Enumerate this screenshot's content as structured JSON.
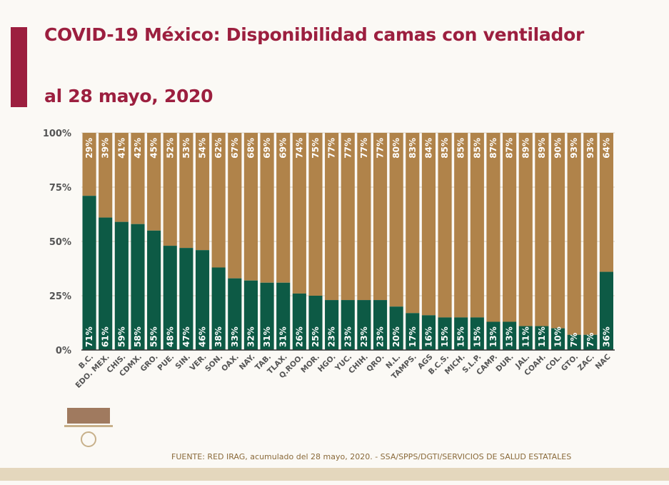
{
  "title_line1": "COVID-19 México: Disponibilidad camas con ventilador",
  "title_line2": "al 28 mayo, 2020",
  "footer": "FUENTE: RED IRAG, acumulado del 28 mayo, 2020. -  SSA/SPPS/DGTI/SERVICIOS DE SALUD ESTATALES",
  "colors": {
    "occupied": "#0d5a45",
    "available": "#b0834a",
    "title": "#9c1f3f"
  },
  "chart_data": {
    "type": "bar",
    "stacked": true,
    "ylim": [
      0,
      100
    ],
    "yticks": [
      "0%",
      "25%",
      "50%",
      "75%",
      "100%"
    ],
    "grid": true,
    "categories": [
      "B.C.",
      "EDO. MEX.",
      "CHIS.",
      "CDMX.",
      "GRO.",
      "PUE.",
      "SIN.",
      "VER.",
      "SON.",
      "OAX.",
      "NAY.",
      "TAB.",
      "TLAX.",
      "Q.ROO.",
      "MOR.",
      "HGO.",
      "YUC.",
      "CHIH.",
      "QRO.",
      "N.L.",
      "TAMPS.",
      "AGS",
      "B.C.S.",
      "MICH.",
      "S.L.P.",
      "CAMP.",
      "DUR.",
      "JAL.",
      "COAH.",
      "COL.",
      "GTO.",
      "ZAC.",
      "NAC"
    ],
    "series": [
      {
        "values": [
          71,
          61,
          59,
          58,
          55,
          48,
          47,
          46,
          38,
          33,
          32,
          31,
          31,
          26,
          25,
          23,
          23,
          23,
          23,
          20,
          17,
          16,
          15,
          15,
          15,
          13,
          13,
          11,
          11,
          10,
          7,
          7,
          36
        ]
      },
      {
        "values": [
          29,
          39,
          41,
          42,
          45,
          52,
          53,
          54,
          62,
          67,
          68,
          69,
          69,
          74,
          75,
          77,
          77,
          77,
          77,
          80,
          83,
          84,
          85,
          85,
          85,
          87,
          87,
          89,
          89,
          90,
          93,
          93,
          64
        ]
      }
    ]
  }
}
